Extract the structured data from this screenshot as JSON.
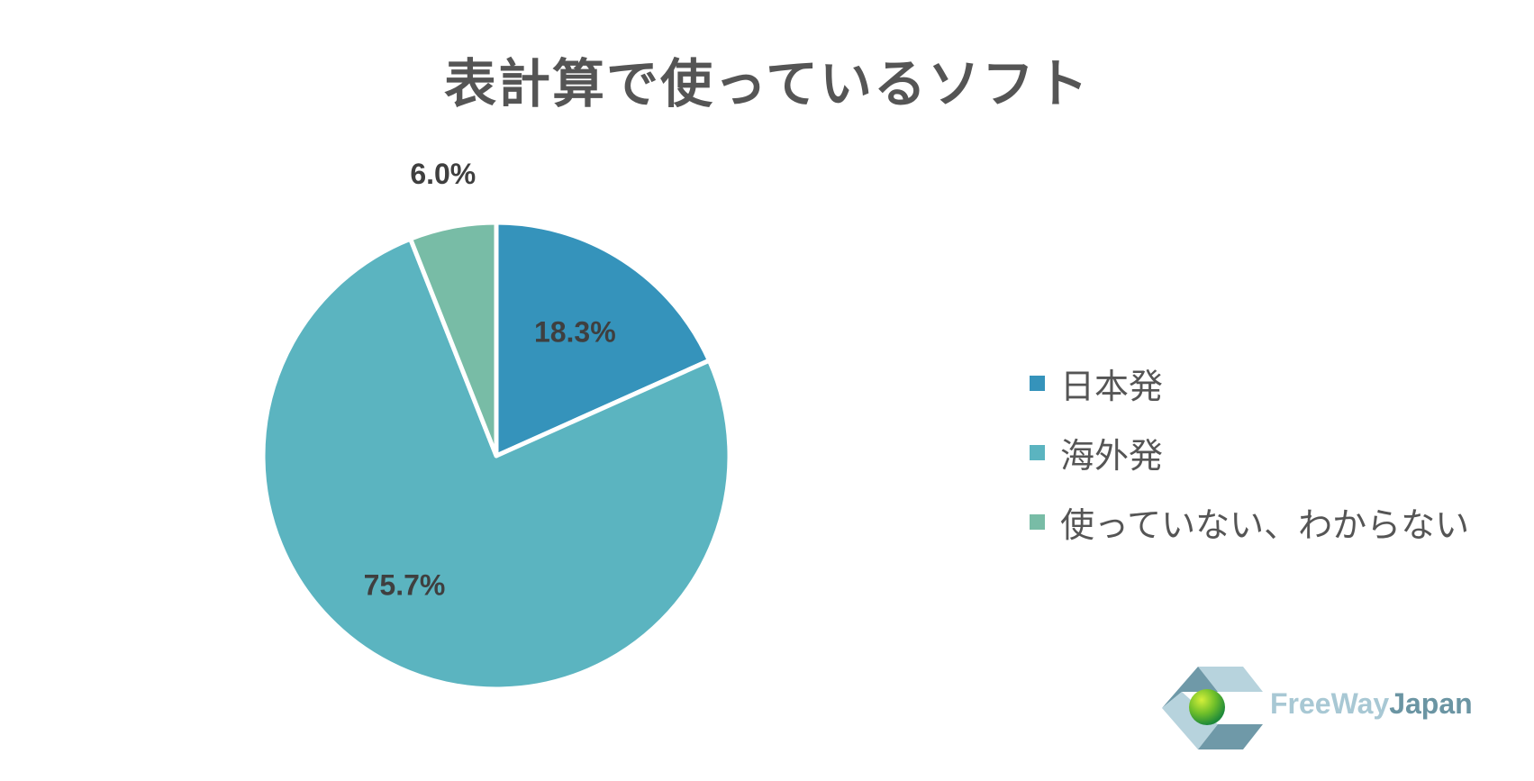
{
  "chart_data": {
    "type": "pie",
    "title": "表計算で使っているソフト",
    "categories": [
      "日本発",
      "海外発",
      "使っていない、わからない"
    ],
    "values": [
      18.3,
      75.7,
      6.0
    ],
    "value_labels": [
      "18.3%",
      "75.7%",
      "6.0%"
    ],
    "colors": [
      "#3593bb",
      "#5bb4c0",
      "#78bca6"
    ],
    "start_angle": "12 o'clock",
    "direction": "clockwise",
    "legend_position": "right"
  },
  "logo": {
    "brand_part1": "FreeWay",
    "brand_part2": "Japan",
    "brand_color1": "#a8c8d4",
    "brand_color2": "#6b95a3"
  }
}
